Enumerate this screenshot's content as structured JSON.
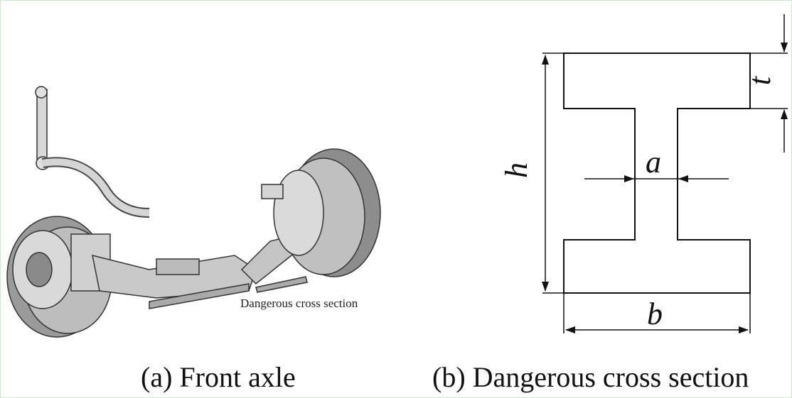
{
  "captions": {
    "front_axle": "(a) Front axle",
    "cross_section": "(b) Dangerous cross section"
  },
  "axle_label": "Dangerous cross section",
  "dimensions": {
    "h": "h",
    "t": "t",
    "a": "a",
    "b": "b"
  }
}
